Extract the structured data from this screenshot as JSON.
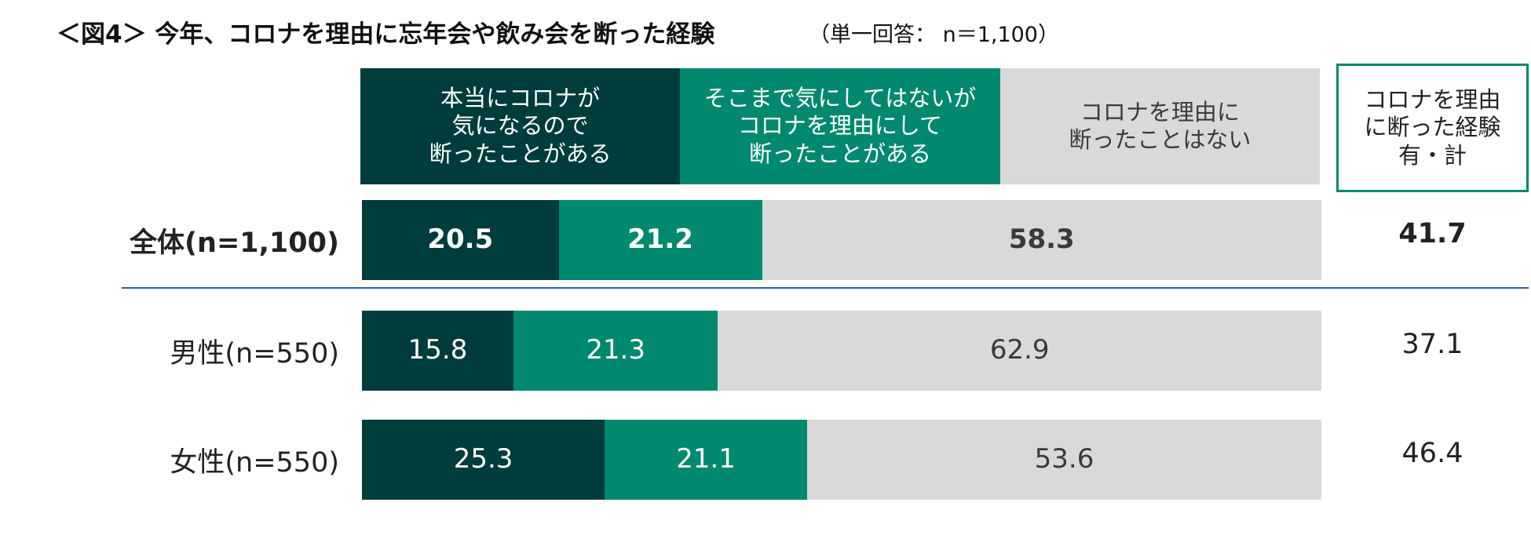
{
  "chart_data": {
    "type": "stacked_bar_horizontal",
    "title": "＜図4＞ 今年、コロナを理由に忘年会や飲み会を断った経験",
    "subtitle": "（単一回答： n＝1,100）",
    "categories": [
      "全体(n=1,100)",
      "男性(n=550)",
      "女性(n=550)"
    ],
    "xlim": [
      0,
      100
    ],
    "series": [
      {
        "name": "本当にコロナが\n気になるので\n断ったことがある",
        "color": "#003c3c",
        "values": [
          20.5,
          15.8,
          25.3
        ]
      },
      {
        "name": "そこまで気にしてはないが\nコロナを理由にして\n断ったことがある",
        "color": "#00896e",
        "values": [
          21.2,
          21.3,
          21.1
        ]
      },
      {
        "name": "コロナを理由に\n断ったことはない",
        "color": "#d9d9d9",
        "values": [
          58.3,
          62.9,
          53.6
        ]
      }
    ],
    "totals": {
      "label": "コロナを理由\nに断った経験\n有・計",
      "values": [
        41.7,
        37.1,
        46.4
      ]
    }
  }
}
